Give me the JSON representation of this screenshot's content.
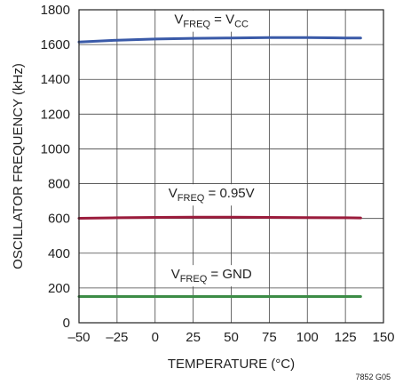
{
  "chart_data": {
    "type": "line",
    "title": "",
    "xlabel": "TEMPERATURE (°C)",
    "ylabel": "OSCILLATOR FREQUENCY (kHz)",
    "xlim": [
      -50,
      150
    ],
    "ylim": [
      0,
      1800
    ],
    "x_ticks": [
      -50,
      -25,
      0,
      25,
      50,
      75,
      100,
      125,
      150
    ],
    "x_tick_labels": [
      "–50",
      "–25",
      "0",
      "25",
      "50",
      "75",
      "100",
      "125",
      "150"
    ],
    "y_ticks": [
      0,
      200,
      400,
      600,
      800,
      1000,
      1200,
      1400,
      1600,
      1800
    ],
    "y_tick_labels": [
      "0",
      "200",
      "400",
      "600",
      "800",
      "1000",
      "1200",
      "1400",
      "1600",
      "1800"
    ],
    "grid": true,
    "figure_code": "7852 G05",
    "series": [
      {
        "label_main": "V",
        "label_sub": "FREQ",
        "label_rest": " = V",
        "label_sub2": "CC",
        "color": "#3a5aa8",
        "x": [
          -50,
          -25,
          0,
          25,
          50,
          75,
          100,
          125,
          135
        ],
        "y": [
          1615,
          1625,
          1632,
          1636,
          1638,
          1640,
          1640,
          1638,
          1638
        ]
      },
      {
        "label_main": "V",
        "label_sub": "FREQ",
        "label_rest": " = 0.95V",
        "label_sub2": "",
        "color": "#9b1c3c",
        "x": [
          -50,
          -25,
          0,
          25,
          50,
          75,
          100,
          125,
          135
        ],
        "y": [
          601,
          604,
          606,
          607,
          607,
          606,
          605,
          604,
          603
        ]
      },
      {
        "label_main": "V",
        "label_sub": "FREQ",
        "label_rest": " = GND",
        "label_sub2": "",
        "color": "#3c8c46",
        "x": [
          -50,
          -25,
          0,
          25,
          50,
          75,
          100,
          125,
          135
        ],
        "y": [
          151,
          151,
          151,
          151,
          151,
          151,
          151,
          151,
          151
        ]
      }
    ]
  }
}
